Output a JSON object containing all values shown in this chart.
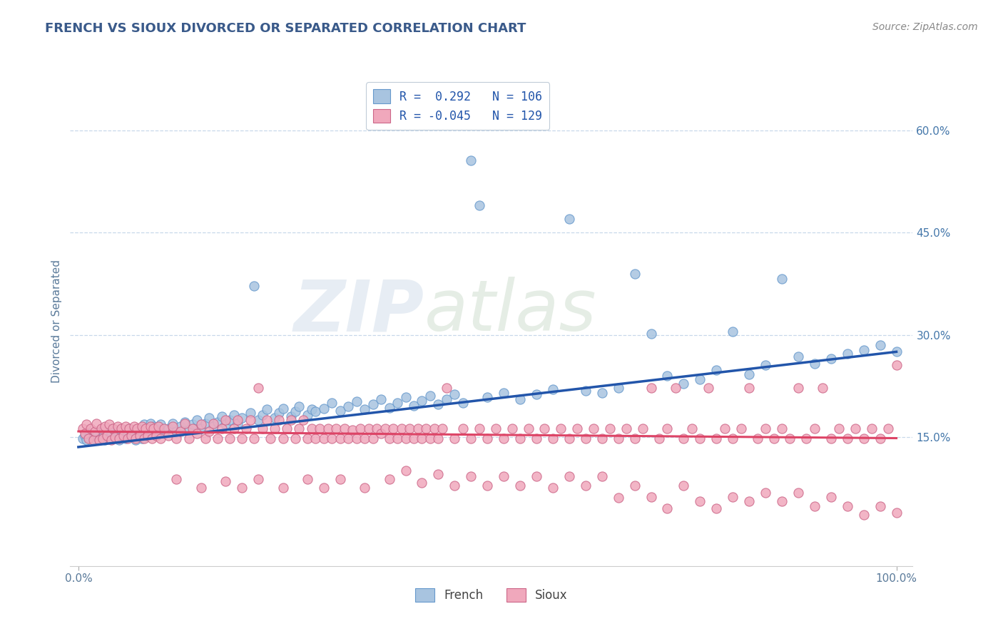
{
  "title": "FRENCH VS SIOUX DIVORCED OR SEPARATED CORRELATION CHART",
  "source": "Source: ZipAtlas.com",
  "ylabel": "Divorced or Separated",
  "xlim": [
    0,
    1
  ],
  "ylim": [
    -0.04,
    0.68
  ],
  "yticks": [
    0.15,
    0.3,
    0.45,
    0.6
  ],
  "ytick_labels": [
    "15.0%",
    "30.0%",
    "45.0%",
    "60.0%"
  ],
  "legend_r_french": "0.292",
  "legend_n_french": "106",
  "legend_r_sioux": "-0.045",
  "legend_n_sioux": "129",
  "french_color": "#a8c4e0",
  "sioux_color": "#f0a8bc",
  "french_line_color": "#2255aa",
  "sioux_line_color": "#dd4466",
  "title_color": "#3a5a8a",
  "background_color": "#ffffff",
  "grid_color": "#c8d8ea",
  "french_trend": [
    0.0,
    0.135,
    1.0,
    0.275
  ],
  "sioux_trend": [
    0.0,
    0.158,
    1.0,
    0.148
  ],
  "french_points": [
    [
      0.005,
      0.148
    ],
    [
      0.008,
      0.152
    ],
    [
      0.01,
      0.145
    ],
    [
      0.012,
      0.15
    ],
    [
      0.015,
      0.155
    ],
    [
      0.018,
      0.148
    ],
    [
      0.02,
      0.152
    ],
    [
      0.022,
      0.158
    ],
    [
      0.025,
      0.145
    ],
    [
      0.028,
      0.15
    ],
    [
      0.03,
      0.158
    ],
    [
      0.032,
      0.145
    ],
    [
      0.035,
      0.152
    ],
    [
      0.038,
      0.148
    ],
    [
      0.04,
      0.155
    ],
    [
      0.042,
      0.162
    ],
    [
      0.045,
      0.15
    ],
    [
      0.048,
      0.158
    ],
    [
      0.05,
      0.145
    ],
    [
      0.052,
      0.152
    ],
    [
      0.055,
      0.16
    ],
    [
      0.058,
      0.148
    ],
    [
      0.06,
      0.155
    ],
    [
      0.062,
      0.162
    ],
    [
      0.065,
      0.15
    ],
    [
      0.068,
      0.158
    ],
    [
      0.07,
      0.145
    ],
    [
      0.072,
      0.152
    ],
    [
      0.075,
      0.16
    ],
    [
      0.078,
      0.148
    ],
    [
      0.08,
      0.168
    ],
    [
      0.082,
      0.155
    ],
    [
      0.085,
      0.162
    ],
    [
      0.088,
      0.17
    ],
    [
      0.09,
      0.158
    ],
    [
      0.092,
      0.165
    ],
    [
      0.095,
      0.152
    ],
    [
      0.098,
      0.16
    ],
    [
      0.1,
      0.168
    ],
    [
      0.105,
      0.155
    ],
    [
      0.11,
      0.162
    ],
    [
      0.115,
      0.17
    ],
    [
      0.12,
      0.158
    ],
    [
      0.125,
      0.165
    ],
    [
      0.13,
      0.172
    ],
    [
      0.135,
      0.16
    ],
    [
      0.14,
      0.168
    ],
    [
      0.145,
      0.175
    ],
    [
      0.15,
      0.162
    ],
    [
      0.155,
      0.17
    ],
    [
      0.16,
      0.178
    ],
    [
      0.165,
      0.165
    ],
    [
      0.17,
      0.172
    ],
    [
      0.175,
      0.18
    ],
    [
      0.18,
      0.168
    ],
    [
      0.185,
      0.175
    ],
    [
      0.19,
      0.182
    ],
    [
      0.195,
      0.17
    ],
    [
      0.2,
      0.178
    ],
    [
      0.21,
      0.185
    ],
    [
      0.215,
      0.372
    ],
    [
      0.22,
      0.175
    ],
    [
      0.225,
      0.182
    ],
    [
      0.23,
      0.19
    ],
    [
      0.24,
      0.178
    ],
    [
      0.245,
      0.185
    ],
    [
      0.25,
      0.192
    ],
    [
      0.26,
      0.18
    ],
    [
      0.265,
      0.187
    ],
    [
      0.27,
      0.195
    ],
    [
      0.28,
      0.182
    ],
    [
      0.285,
      0.19
    ],
    [
      0.29,
      0.187
    ],
    [
      0.3,
      0.192
    ],
    [
      0.31,
      0.2
    ],
    [
      0.32,
      0.188
    ],
    [
      0.33,
      0.195
    ],
    [
      0.34,
      0.202
    ],
    [
      0.35,
      0.19
    ],
    [
      0.36,
      0.198
    ],
    [
      0.37,
      0.205
    ],
    [
      0.38,
      0.193
    ],
    [
      0.39,
      0.2
    ],
    [
      0.4,
      0.208
    ],
    [
      0.41,
      0.196
    ],
    [
      0.42,
      0.203
    ],
    [
      0.43,
      0.21
    ],
    [
      0.44,
      0.198
    ],
    [
      0.45,
      0.205
    ],
    [
      0.46,
      0.213
    ],
    [
      0.47,
      0.2
    ],
    [
      0.48,
      0.556
    ],
    [
      0.49,
      0.49
    ],
    [
      0.5,
      0.208
    ],
    [
      0.52,
      0.215
    ],
    [
      0.54,
      0.205
    ],
    [
      0.56,
      0.212
    ],
    [
      0.58,
      0.22
    ],
    [
      0.6,
      0.47
    ],
    [
      0.62,
      0.218
    ],
    [
      0.64,
      0.215
    ],
    [
      0.66,
      0.222
    ],
    [
      0.68,
      0.39
    ],
    [
      0.7,
      0.302
    ],
    [
      0.72,
      0.24
    ],
    [
      0.74,
      0.228
    ],
    [
      0.76,
      0.235
    ],
    [
      0.78,
      0.248
    ],
    [
      0.8,
      0.305
    ],
    [
      0.82,
      0.242
    ],
    [
      0.84,
      0.255
    ],
    [
      0.86,
      0.382
    ],
    [
      0.88,
      0.268
    ],
    [
      0.9,
      0.258
    ],
    [
      0.92,
      0.265
    ],
    [
      0.94,
      0.272
    ],
    [
      0.96,
      0.278
    ],
    [
      0.98,
      0.285
    ],
    [
      1.0,
      0.275
    ]
  ],
  "sioux_points": [
    [
      0.005,
      0.162
    ],
    [
      0.008,
      0.155
    ],
    [
      0.01,
      0.168
    ],
    [
      0.012,
      0.148
    ],
    [
      0.015,
      0.162
    ],
    [
      0.018,
      0.145
    ],
    [
      0.02,
      0.158
    ],
    [
      0.022,
      0.17
    ],
    [
      0.025,
      0.145
    ],
    [
      0.028,
      0.162
    ],
    [
      0.03,
      0.148
    ],
    [
      0.032,
      0.165
    ],
    [
      0.035,
      0.152
    ],
    [
      0.038,
      0.168
    ],
    [
      0.04,
      0.145
    ],
    [
      0.042,
      0.162
    ],
    [
      0.045,
      0.15
    ],
    [
      0.048,
      0.165
    ],
    [
      0.05,
      0.148
    ],
    [
      0.052,
      0.162
    ],
    [
      0.055,
      0.152
    ],
    [
      0.058,
      0.165
    ],
    [
      0.06,
      0.148
    ],
    [
      0.062,
      0.162
    ],
    [
      0.065,
      0.152
    ],
    [
      0.068,
      0.165
    ],
    [
      0.07,
      0.148
    ],
    [
      0.072,
      0.162
    ],
    [
      0.075,
      0.152
    ],
    [
      0.078,
      0.165
    ],
    [
      0.08,
      0.148
    ],
    [
      0.082,
      0.162
    ],
    [
      0.085,
      0.152
    ],
    [
      0.088,
      0.165
    ],
    [
      0.09,
      0.148
    ],
    [
      0.092,
      0.162
    ],
    [
      0.095,
      0.152
    ],
    [
      0.098,
      0.165
    ],
    [
      0.1,
      0.148
    ],
    [
      0.105,
      0.162
    ],
    [
      0.11,
      0.152
    ],
    [
      0.115,
      0.165
    ],
    [
      0.12,
      0.148
    ],
    [
      0.125,
      0.158
    ],
    [
      0.13,
      0.17
    ],
    [
      0.135,
      0.148
    ],
    [
      0.14,
      0.162
    ],
    [
      0.145,
      0.155
    ],
    [
      0.15,
      0.168
    ],
    [
      0.155,
      0.148
    ],
    [
      0.16,
      0.158
    ],
    [
      0.165,
      0.17
    ],
    [
      0.17,
      0.148
    ],
    [
      0.175,
      0.162
    ],
    [
      0.18,
      0.175
    ],
    [
      0.185,
      0.148
    ],
    [
      0.19,
      0.162
    ],
    [
      0.195,
      0.175
    ],
    [
      0.2,
      0.148
    ],
    [
      0.205,
      0.162
    ],
    [
      0.21,
      0.175
    ],
    [
      0.215,
      0.148
    ],
    [
      0.22,
      0.222
    ],
    [
      0.225,
      0.162
    ],
    [
      0.23,
      0.175
    ],
    [
      0.235,
      0.148
    ],
    [
      0.24,
      0.162
    ],
    [
      0.245,
      0.175
    ],
    [
      0.25,
      0.148
    ],
    [
      0.255,
      0.162
    ],
    [
      0.26,
      0.175
    ],
    [
      0.265,
      0.148
    ],
    [
      0.27,
      0.162
    ],
    [
      0.275,
      0.175
    ],
    [
      0.28,
      0.148
    ],
    [
      0.285,
      0.162
    ],
    [
      0.29,
      0.148
    ],
    [
      0.295,
      0.162
    ],
    [
      0.3,
      0.148
    ],
    [
      0.305,
      0.162
    ],
    [
      0.31,
      0.148
    ],
    [
      0.315,
      0.162
    ],
    [
      0.32,
      0.148
    ],
    [
      0.325,
      0.162
    ],
    [
      0.33,
      0.148
    ],
    [
      0.335,
      0.16
    ],
    [
      0.34,
      0.148
    ],
    [
      0.345,
      0.162
    ],
    [
      0.35,
      0.148
    ],
    [
      0.355,
      0.162
    ],
    [
      0.36,
      0.148
    ],
    [
      0.365,
      0.162
    ],
    [
      0.37,
      0.155
    ],
    [
      0.375,
      0.162
    ],
    [
      0.38,
      0.148
    ],
    [
      0.385,
      0.162
    ],
    [
      0.39,
      0.148
    ],
    [
      0.395,
      0.162
    ],
    [
      0.4,
      0.148
    ],
    [
      0.405,
      0.162
    ],
    [
      0.41,
      0.148
    ],
    [
      0.415,
      0.162
    ],
    [
      0.42,
      0.148
    ],
    [
      0.425,
      0.162
    ],
    [
      0.43,
      0.148
    ],
    [
      0.435,
      0.162
    ],
    [
      0.44,
      0.148
    ],
    [
      0.445,
      0.162
    ],
    [
      0.45,
      0.222
    ],
    [
      0.46,
      0.148
    ],
    [
      0.47,
      0.162
    ],
    [
      0.48,
      0.148
    ],
    [
      0.49,
      0.162
    ],
    [
      0.5,
      0.148
    ],
    [
      0.51,
      0.162
    ],
    [
      0.52,
      0.148
    ],
    [
      0.53,
      0.162
    ],
    [
      0.54,
      0.148
    ],
    [
      0.55,
      0.162
    ],
    [
      0.56,
      0.148
    ],
    [
      0.57,
      0.162
    ],
    [
      0.58,
      0.148
    ],
    [
      0.59,
      0.162
    ],
    [
      0.6,
      0.148
    ],
    [
      0.61,
      0.162
    ],
    [
      0.62,
      0.148
    ],
    [
      0.63,
      0.162
    ],
    [
      0.64,
      0.148
    ],
    [
      0.65,
      0.162
    ],
    [
      0.66,
      0.148
    ],
    [
      0.67,
      0.162
    ],
    [
      0.68,
      0.148
    ],
    [
      0.69,
      0.162
    ],
    [
      0.7,
      0.222
    ],
    [
      0.71,
      0.148
    ],
    [
      0.72,
      0.162
    ],
    [
      0.73,
      0.222
    ],
    [
      0.74,
      0.148
    ],
    [
      0.75,
      0.162
    ],
    [
      0.76,
      0.148
    ],
    [
      0.77,
      0.222
    ],
    [
      0.78,
      0.148
    ],
    [
      0.79,
      0.162
    ],
    [
      0.8,
      0.148
    ],
    [
      0.81,
      0.162
    ],
    [
      0.82,
      0.222
    ],
    [
      0.83,
      0.148
    ],
    [
      0.84,
      0.162
    ],
    [
      0.85,
      0.148
    ],
    [
      0.86,
      0.162
    ],
    [
      0.87,
      0.148
    ],
    [
      0.88,
      0.222
    ],
    [
      0.89,
      0.148
    ],
    [
      0.9,
      0.162
    ],
    [
      0.91,
      0.222
    ],
    [
      0.92,
      0.148
    ],
    [
      0.93,
      0.162
    ],
    [
      0.94,
      0.148
    ],
    [
      0.95,
      0.162
    ],
    [
      0.96,
      0.148
    ],
    [
      0.97,
      0.162
    ],
    [
      0.98,
      0.148
    ],
    [
      0.99,
      0.162
    ],
    [
      1.0,
      0.255
    ],
    [
      0.12,
      0.088
    ],
    [
      0.15,
      0.075
    ],
    [
      0.18,
      0.085
    ],
    [
      0.2,
      0.075
    ],
    [
      0.22,
      0.088
    ],
    [
      0.25,
      0.075
    ],
    [
      0.28,
      0.088
    ],
    [
      0.3,
      0.075
    ],
    [
      0.32,
      0.088
    ],
    [
      0.35,
      0.075
    ],
    [
      0.38,
      0.088
    ],
    [
      0.4,
      0.1
    ],
    [
      0.42,
      0.082
    ],
    [
      0.44,
      0.095
    ],
    [
      0.46,
      0.078
    ],
    [
      0.48,
      0.092
    ],
    [
      0.5,
      0.078
    ],
    [
      0.52,
      0.092
    ],
    [
      0.54,
      0.078
    ],
    [
      0.56,
      0.092
    ],
    [
      0.58,
      0.075
    ],
    [
      0.6,
      0.092
    ],
    [
      0.62,
      0.078
    ],
    [
      0.64,
      0.092
    ],
    [
      0.66,
      0.06
    ],
    [
      0.68,
      0.078
    ],
    [
      0.7,
      0.062
    ],
    [
      0.72,
      0.045
    ],
    [
      0.74,
      0.078
    ],
    [
      0.76,
      0.055
    ],
    [
      0.78,
      0.045
    ],
    [
      0.8,
      0.062
    ],
    [
      0.82,
      0.055
    ],
    [
      0.84,
      0.068
    ],
    [
      0.86,
      0.055
    ],
    [
      0.88,
      0.068
    ],
    [
      0.9,
      0.048
    ],
    [
      0.92,
      0.062
    ],
    [
      0.94,
      0.048
    ],
    [
      0.96,
      0.035
    ],
    [
      0.98,
      0.048
    ],
    [
      1.0,
      0.038
    ]
  ]
}
